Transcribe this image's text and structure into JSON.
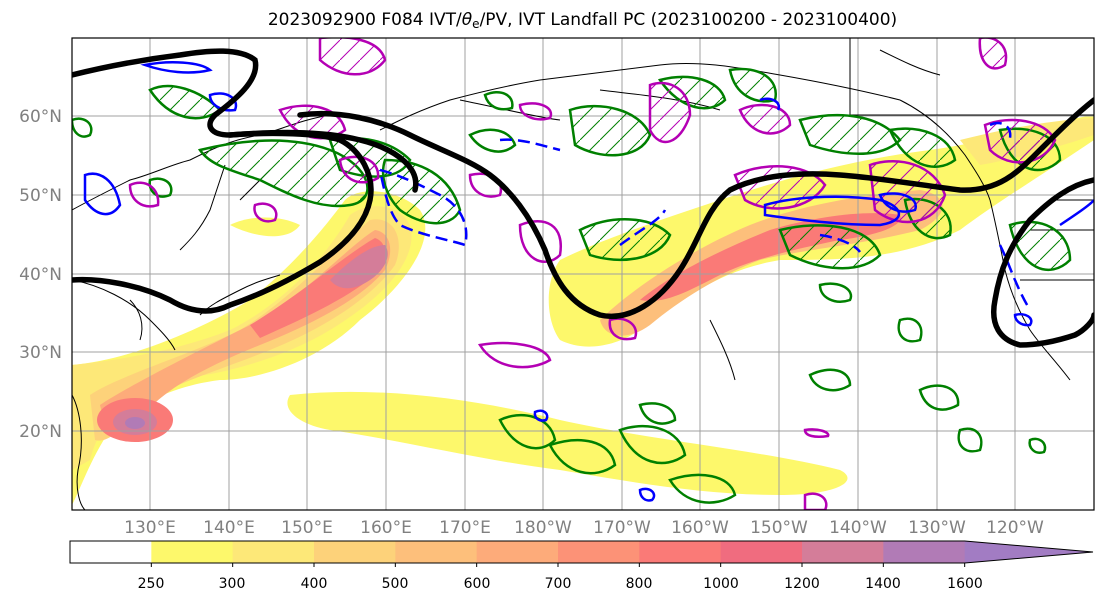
{
  "title": {
    "prefix": "2023092900 F084 IVT/",
    "theta": "θ",
    "theta_sub": "e",
    "suffix": "/PV, IVT Landfall PC (2023100200 - 2023100400)"
  },
  "axes": {
    "lat_labels": [
      "60°N",
      "50°N",
      "40°N",
      "30°N",
      "20°N"
    ],
    "lon_labels": [
      "130°E",
      "140°E",
      "150°E",
      "160°E",
      "170°E",
      "180°W",
      "170°W",
      "160°W",
      "150°W",
      "140°W",
      "130°W",
      "120°W"
    ],
    "tick_color": "#808080",
    "gridlines": true
  },
  "colorbar": {
    "labels": [
      "250",
      "300",
      "400",
      "500",
      "600",
      "700",
      "800",
      "1000",
      "1200",
      "1400",
      "1600"
    ],
    "colors": [
      "#ffffff",
      "#fdf86b",
      "#fde878",
      "#fdd27a",
      "#fdbf7b",
      "#fdab7a",
      "#fc9277",
      "#fa7a77",
      "#f06c7f",
      "#d47d99",
      "#b17bb6",
      "#a27cc3"
    ]
  },
  "contour_colors": {
    "pv_line": "#000000",
    "theta_e": "#008000",
    "ivt_pc": "#b400b4",
    "negative": "#0000ff"
  }
}
